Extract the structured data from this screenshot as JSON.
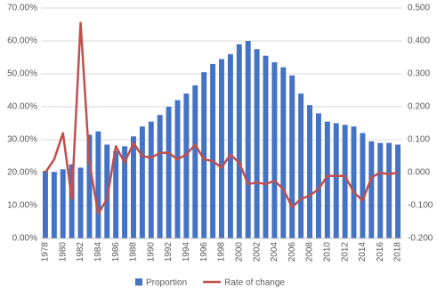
{
  "chart_data": {
    "type": "bar_line",
    "categories": [
      "1978",
      null,
      "1980",
      null,
      "1982",
      null,
      "1984",
      null,
      "1986",
      null,
      "1988",
      null,
      "1990",
      null,
      "1992",
      null,
      "1994",
      null,
      "1996",
      null,
      "1998",
      null,
      "2000",
      null,
      "2002",
      null,
      "2004",
      null,
      "2006",
      null,
      "2008",
      null,
      "2010",
      null,
      "2012",
      null,
      "2014",
      null,
      "2016",
      null,
      "2018"
    ],
    "series": [
      {
        "name": "Proportion",
        "color": "#4472c4",
        "type": "bar",
        "values": [
          20.5,
          20.2,
          21,
          22.5,
          21.5,
          31.5,
          32.5,
          28.5,
          26.5,
          28,
          31,
          34,
          35.5,
          37.5,
          40,
          42,
          44,
          46.5,
          50.5,
          53,
          54.5,
          56,
          59,
          60,
          57.5,
          55.5,
          53.5,
          52,
          49.5,
          44,
          40.5,
          38,
          35.5,
          35,
          34.5,
          34,
          32,
          29.5,
          29,
          29,
          28.5
        ]
      },
      {
        "name": "Rate of change",
        "color": "#c0504d",
        "type": "line",
        "axis": "y2",
        "values": [
          0.0,
          0.04,
          0.12,
          -0.08,
          0.455,
          0.03,
          -0.125,
          -0.08,
          0.08,
          0.03,
          0.09,
          0.05,
          0.045,
          0.06,
          0.06,
          0.04,
          0.055,
          0.085,
          0.04,
          0.035,
          0.015,
          0.055,
          0.03,
          -0.035,
          -0.03,
          -0.035,
          -0.025,
          -0.05,
          -0.105,
          -0.08,
          -0.07,
          -0.05,
          -0.01,
          -0.01,
          -0.01,
          -0.06,
          -0.085,
          -0.015,
          0.0,
          -0.005,
          0.0
        ]
      }
    ],
    "ylim": [
      0,
      70
    ],
    "yticks": [
      {
        "value": 0,
        "label": "0.00%"
      },
      {
        "value": 10,
        "label": "10.00%"
      },
      {
        "value": 20,
        "label": "20.00%"
      },
      {
        "value": 30,
        "label": "30.00%"
      },
      {
        "value": 40,
        "label": "40.00%"
      },
      {
        "value": 50,
        "label": "50.00%"
      },
      {
        "value": 60,
        "label": "60.00%"
      },
      {
        "value": 70,
        "label": "70.00%"
      }
    ],
    "y2lim": [
      -0.2,
      0.5
    ],
    "y2ticks": [
      {
        "value": -0.2,
        "label": "-0.200"
      },
      {
        "value": -0.1,
        "label": "-0.100"
      },
      {
        "value": 0,
        "label": "0.000"
      },
      {
        "value": 0.1,
        "label": "0.100"
      },
      {
        "value": 0.2,
        "label": "0.200"
      },
      {
        "value": 0.3,
        "label": "0.300"
      },
      {
        "value": 0.4,
        "label": "0.400"
      },
      {
        "value": 0.5,
        "label": "0.500"
      }
    ],
    "grid": true
  }
}
